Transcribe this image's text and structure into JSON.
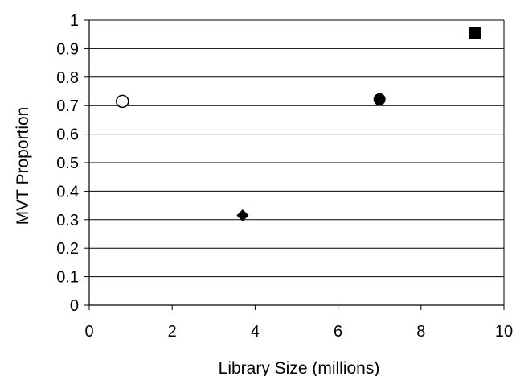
{
  "chart_data": {
    "type": "scatter",
    "title": "",
    "xlabel": "Library Size (millions)",
    "ylabel": "MVT Proportion",
    "xlim": [
      0,
      10
    ],
    "ylim": [
      0,
      1
    ],
    "x_ticks": [
      "0",
      "2",
      "4",
      "6",
      "8",
      "10"
    ],
    "y_ticks": [
      "0",
      "0.1",
      "0.2",
      "0.3",
      "0.4",
      "0.5",
      "0.6",
      "0.7",
      "0.8",
      "0.9",
      "1"
    ],
    "x_tick_values": [
      0,
      2,
      4,
      6,
      8,
      10
    ],
    "y_tick_values": [
      0,
      0.1,
      0.2,
      0.3,
      0.4,
      0.5,
      0.6,
      0.7,
      0.8,
      0.9,
      1
    ],
    "grid": "horizontal",
    "legend": "none",
    "points": [
      {
        "x": 0.8,
        "y": 0.715,
        "marker": "open-circle"
      },
      {
        "x": 3.7,
        "y": 0.315,
        "marker": "diamond"
      },
      {
        "x": 7.0,
        "y": 0.722,
        "marker": "filled-circle"
      },
      {
        "x": 9.3,
        "y": 0.955,
        "marker": "square"
      }
    ],
    "colors": {
      "marker": "#000000",
      "grid": "#000000",
      "background": "#ffffff"
    }
  }
}
